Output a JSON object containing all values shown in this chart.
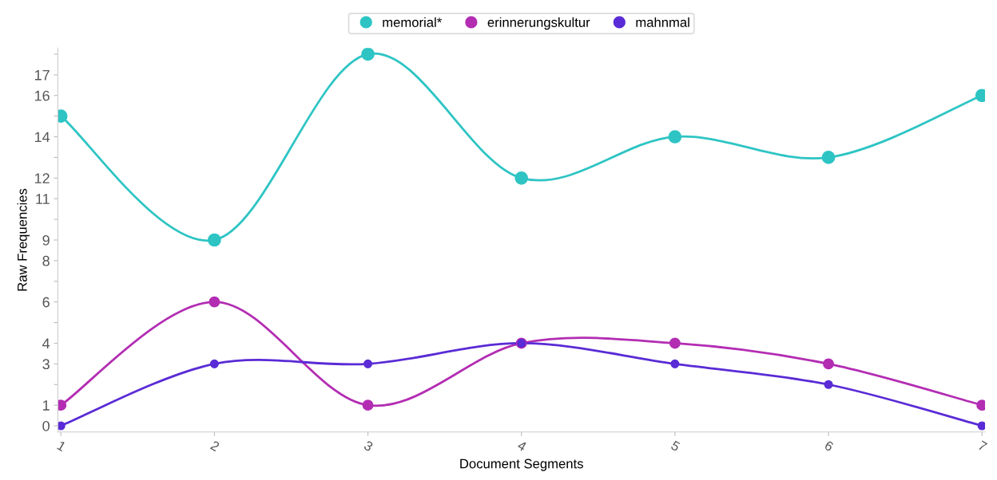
{
  "chart_data": {
    "type": "line",
    "xlabel": "Document Segments",
    "ylabel": "Raw Frequencies",
    "categories": [
      "1",
      "2",
      "3",
      "4",
      "5",
      "6",
      "7"
    ],
    "series": [
      {
        "name": "memorial*",
        "color": "#2ec4c4",
        "values": [
          15,
          9,
          18,
          12,
          14,
          13,
          16
        ]
      },
      {
        "name": "erinnerungskultur",
        "color": "#b32db3",
        "values": [
          1,
          6,
          1,
          4,
          4,
          3,
          1
        ]
      },
      {
        "name": "mahnmal",
        "color": "#5a2bd6",
        "values": [
          0,
          3,
          3,
          4,
          3,
          2,
          0
        ]
      }
    ],
    "ylim": [
      -0.3,
      18.3
    ],
    "yticks": [
      0,
      1,
      {
        "value": 2,
        "label": null
      },
      3,
      4,
      {
        "value": 5,
        "label": null
      },
      6,
      {
        "value": 7,
        "label": null
      },
      8,
      9,
      {
        "value": 10,
        "label": null
      },
      11,
      12,
      {
        "value": 13,
        "label": null
      },
      14,
      {
        "value": 15,
        "label": null
      },
      16,
      17,
      {
        "value": 18,
        "label": null
      }
    ],
    "marker": "circle",
    "line_style": "solid",
    "grid": false,
    "legend": "top"
  }
}
